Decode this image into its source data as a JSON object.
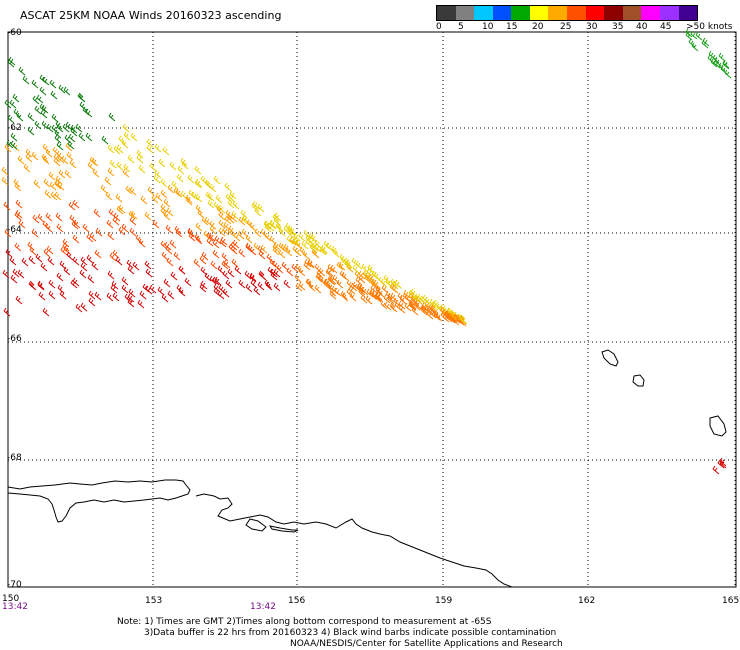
{
  "title": "ASCAT 25KM NOAA Winds 20160323 ascending",
  "colorbar": {
    "labels": [
      "0",
      "5",
      "10",
      "15",
      "20",
      "25",
      "30",
      "35",
      "40",
      "45",
      ">50 knots"
    ],
    "colors": [
      "#3a3a3a",
      "#808080",
      "#00c8ff",
      "#0050ff",
      "#00a800",
      "#ffff00",
      "#ffaa00",
      "#ff5000",
      "#ff0000",
      "#8c0000",
      "#a05028",
      "#ff00ff",
      "#9b30ff",
      "#400090"
    ]
  },
  "axes": {
    "lat_ticks": [
      "-60",
      "-62",
      "-64",
      "-66",
      "-68",
      "-70"
    ],
    "lon_ticks": [
      "150",
      "153",
      "156",
      "159",
      "162",
      "165"
    ],
    "time_labels": [
      "13:42",
      "13:42"
    ],
    "lat_range": [
      -70,
      -60
    ],
    "lon_range": [
      150,
      165
    ],
    "grid": "dotted"
  },
  "notes": {
    "line1": "Note: 1) Times are GMT 2)Times along bottom correspond to measurement at -65S",
    "line2": "3)Data buffer is 22 hrs from 20160323 4) Black wind barbs indicate possible contamination",
    "line3": "NOAA/NESDIS/Center for Satellite Applications and Research"
  }
}
